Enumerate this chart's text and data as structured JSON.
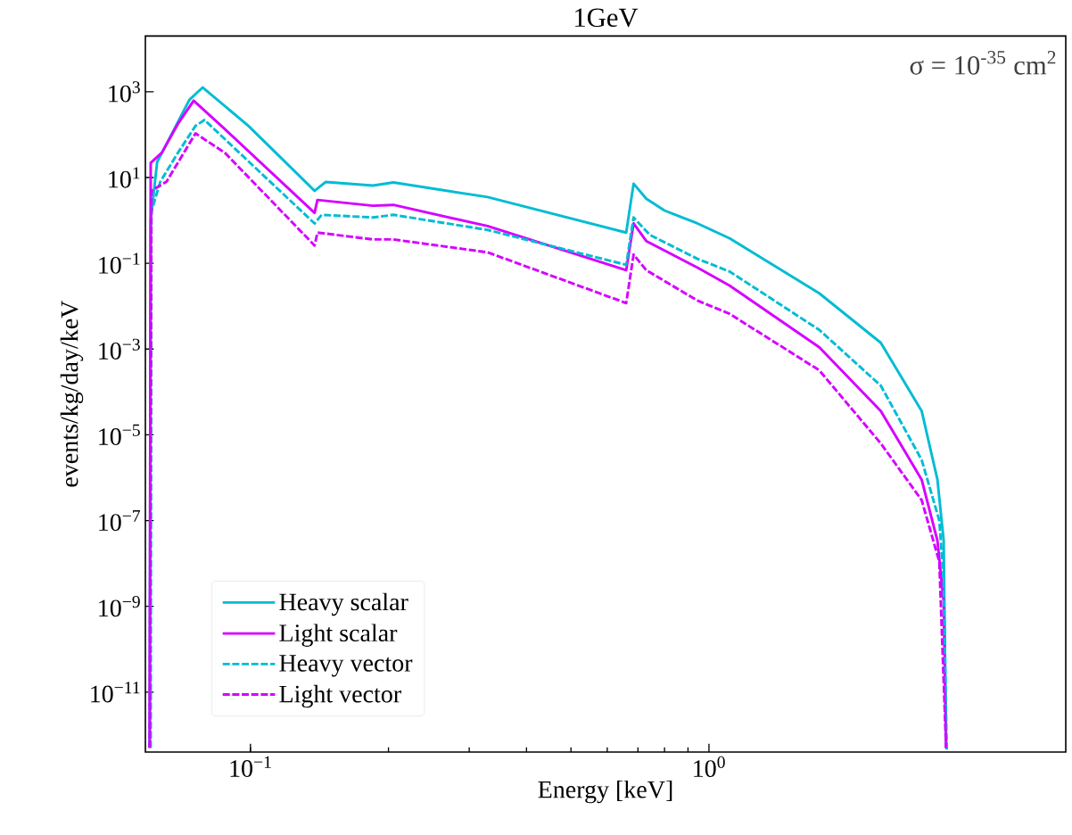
{
  "chart_data": {
    "type": "line",
    "title": "1GeV",
    "xlabel": "Energy [keV]",
    "ylabel": "events/kg/day/keV",
    "annotations": [
      "σ = 10$^{-35}$ cm$^{2}$"
    ],
    "xlim": [
      0.059,
      6
    ],
    "ylim": [
      4e-13,
      20000
    ],
    "xticks": [
      {
        "value": 0.1,
        "label": "10$^{−1}$"
      },
      {
        "value": 1,
        "label": "10$^{0}$"
      }
    ],
    "yticks": [
      {
        "value": 1e-11,
        "label": "10$^{−11}$"
      },
      {
        "value": 1e-09,
        "label": "10$^{−9}$"
      },
      {
        "value": 1e-07,
        "label": "10$^{−7}$"
      },
      {
        "value": 1e-05,
        "label": "10$^{−5}$"
      },
      {
        "value": 0.001,
        "label": "10$^{−3}$"
      },
      {
        "value": 0.1,
        "label": "10$^{−1}$"
      },
      {
        "value": 10,
        "label": "10$^{1}$"
      },
      {
        "value": 1000,
        "label": "10$^{3}$"
      }
    ],
    "log": "xy",
    "grid": false,
    "legend": "bottom left",
    "marker": "none",
    "series": [
      {
        "name": "Heavy scalar",
        "color": "#00bcd4",
        "line_style": "solid",
        "x": [
          0.0603,
          0.0606,
          0.0626,
          0.0736,
          0.0787,
          0.099,
          0.138,
          0.146,
          0.185,
          0.205,
          0.329,
          0.66,
          0.685,
          0.73,
          0.8,
          0.944,
          1.11,
          1.74,
          2.37,
          2.91,
          3.15,
          3.25,
          3.29
        ],
        "values": [
          5e-13,
          1.0,
          23,
          650,
          1260,
          160,
          4.9,
          7.9,
          6.5,
          7.7,
          3.5,
          0.52,
          7.2,
          3.2,
          1.7,
          0.85,
          0.38,
          0.02,
          0.0014,
          3.6e-05,
          9e-07,
          3.4e-08,
          5e-13
        ]
      },
      {
        "name": "Light scalar",
        "color": "#d600ff",
        "line_style": "solid",
        "x": [
          0.0603,
          0.0606,
          0.0641,
          0.0695,
          0.0752,
          0.0879,
          0.138,
          0.14,
          0.185,
          0.205,
          0.329,
          0.66,
          0.685,
          0.73,
          0.944,
          1.11,
          1.74,
          2.37,
          2.91,
          3.15,
          3.25,
          3.29
        ],
        "values": [
          5e-13,
          22,
          38,
          180,
          620,
          135,
          1.5,
          3.0,
          2.2,
          2.3,
          0.74,
          0.069,
          0.85,
          0.33,
          0.079,
          0.03,
          0.0011,
          3.6e-05,
          9e-07,
          3.4e-08,
          1.3e-09,
          5e-13
        ]
      },
      {
        "name": "Heavy vector",
        "color": "#00bcd4",
        "line_style": "dashed",
        "x": [
          0.0606,
          0.0608,
          0.0636,
          0.0695,
          0.0759,
          0.0794,
          0.0978,
          0.138,
          0.143,
          0.185,
          0.205,
          0.329,
          0.66,
          0.685,
          0.743,
          0.944,
          1.11,
          1.74,
          2.37,
          2.91,
          3.18,
          3.25,
          3.3
        ],
        "values": [
          5e-13,
          1.6,
          8,
          38,
          160,
          220,
          27,
          0.85,
          1.35,
          1.17,
          1.35,
          0.6,
          0.092,
          1.17,
          0.46,
          0.127,
          0.064,
          0.0028,
          0.00014,
          2.6e-06,
          1e-07,
          3.8e-09,
          4.5e-13
        ]
      },
      {
        "name": "Light vector",
        "color": "#d600ff",
        "line_style": "dashed",
        "x": [
          0.0603,
          0.0608,
          0.0656,
          0.0716,
          0.0759,
          0.0879,
          0.138,
          0.14,
          0.185,
          0.205,
          0.329,
          0.66,
          0.685,
          0.73,
          0.944,
          1.11,
          1.74,
          2.37,
          2.91,
          3.18,
          3.29
        ],
        "values": [
          5e-13,
          4.9,
          8,
          38,
          107,
          38,
          0.26,
          0.52,
          0.36,
          0.36,
          0.18,
          0.0118,
          0.16,
          0.069,
          0.0135,
          0.0066,
          0.00032,
          6.3e-06,
          3e-07,
          1.1e-08,
          5e-13
        ]
      }
    ]
  }
}
